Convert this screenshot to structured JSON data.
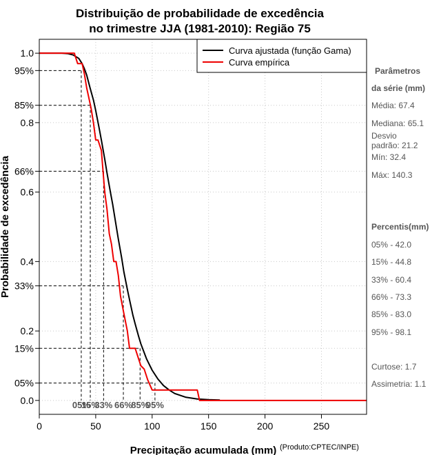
{
  "chart_data": {
    "type": "line",
    "title": [
      "Distribuição de probabilidade de excedência",
      "no trimestre JJA (1981-2010): Região 75"
    ],
    "xlabel": "Precipitação acumulada (mm)",
    "ylabel": "Probabilidade de excedência",
    "credit": "(Produto:CPTEC/INPE)",
    "xlim": [
      0,
      290
    ],
    "ylim": [
      -0.04,
      1.04
    ],
    "x_ticks": [
      0,
      50,
      100,
      150,
      200,
      250
    ],
    "y_ticks": [
      {
        "v": 0.0,
        "label": "0.0"
      },
      {
        "v": 0.05,
        "label": "05%"
      },
      {
        "v": 0.15,
        "label": "15%"
      },
      {
        "v": 0.2,
        "label": "0.2"
      },
      {
        "v": 0.33,
        "label": "33%"
      },
      {
        "v": 0.4,
        "label": "0.4"
      },
      {
        "v": 0.6,
        "label": "0.6"
      },
      {
        "v": 0.66,
        "label": "66%"
      },
      {
        "v": 0.8,
        "label": "0.8"
      },
      {
        "v": 0.85,
        "label": "85%"
      },
      {
        "v": 0.95,
        "label": "95%"
      },
      {
        "v": 1.0,
        "label": "1.0"
      }
    ],
    "grid": true,
    "legend_position": "top-right",
    "series": [
      {
        "name": "Curva ajustada (função Gama)",
        "color": "#000000",
        "x": [
          0,
          20,
          25,
          30,
          35,
          38,
          40,
          42,
          45,
          48,
          50,
          53,
          55,
          58,
          60,
          63,
          65,
          68,
          70,
          73,
          75,
          78,
          80,
          83,
          85,
          88,
          90,
          95,
          100,
          105,
          110,
          115,
          120,
          130,
          140,
          150,
          160
        ],
        "y": [
          1.0,
          1.0,
          0.999,
          0.995,
          0.985,
          0.97,
          0.955,
          0.937,
          0.9,
          0.865,
          0.835,
          0.785,
          0.75,
          0.695,
          0.655,
          0.6,
          0.565,
          0.505,
          0.465,
          0.41,
          0.37,
          0.32,
          0.29,
          0.245,
          0.22,
          0.185,
          0.163,
          0.12,
          0.087,
          0.062,
          0.043,
          0.03,
          0.02,
          0.009,
          0.004,
          0.002,
          0.001
        ]
      },
      {
        "name": "Curva empírica",
        "color": "#ee0000",
        "x": [
          0,
          31,
          34,
          38,
          40,
          42,
          44,
          46,
          48,
          50,
          52,
          55,
          58,
          60,
          62,
          64,
          66,
          68,
          70,
          72,
          75,
          78,
          80,
          82,
          85,
          88,
          90,
          93,
          96,
          100,
          102,
          105,
          110,
          115,
          120,
          130,
          140,
          142,
          290
        ],
        "y": [
          1.0,
          1.0,
          0.97,
          0.97,
          0.94,
          0.9,
          0.87,
          0.84,
          0.8,
          0.75,
          0.75,
          0.72,
          0.6,
          0.55,
          0.48,
          0.45,
          0.4,
          0.4,
          0.36,
          0.3,
          0.25,
          0.2,
          0.15,
          0.15,
          0.15,
          0.12,
          0.1,
          0.09,
          0.06,
          0.03,
          0.03,
          0.03,
          0.03,
          0.03,
          0.03,
          0.03,
          0.03,
          0.0,
          0.0
        ]
      }
    ],
    "percentile_markers": [
      {
        "label": "05%",
        "x": 37.2,
        "y": 0.95
      },
      {
        "label": "15%",
        "x": 45.2,
        "y": 0.85
      },
      {
        "label": "33%",
        "x": 57.0,
        "y": 0.66
      },
      {
        "label": "66%",
        "x": 74.5,
        "y": 0.33
      },
      {
        "label": "85%",
        "x": 89.3,
        "y": 0.15
      },
      {
        "label": "95%",
        "x": 102.5,
        "y": 0.05
      }
    ],
    "side_panel": {
      "params_title": [
        "Parâmetros",
        "da série (mm)"
      ],
      "params": [
        "Média: 67.4",
        "Mediana: 65.1",
        "Desvio",
        "padrão: 21.2",
        "Mín: 32.4",
        "Máx: 140.3"
      ],
      "percentiles_title": "Percentis(mm)",
      "percentiles": [
        "05% - 42.0",
        "15% - 44.8",
        "33% - 60.4",
        "66% - 73.3",
        "85% - 83.0",
        "95% - 98.1"
      ],
      "stats": [
        "Curtose: 1.7",
        "Assimetria: 1.1"
      ]
    }
  }
}
